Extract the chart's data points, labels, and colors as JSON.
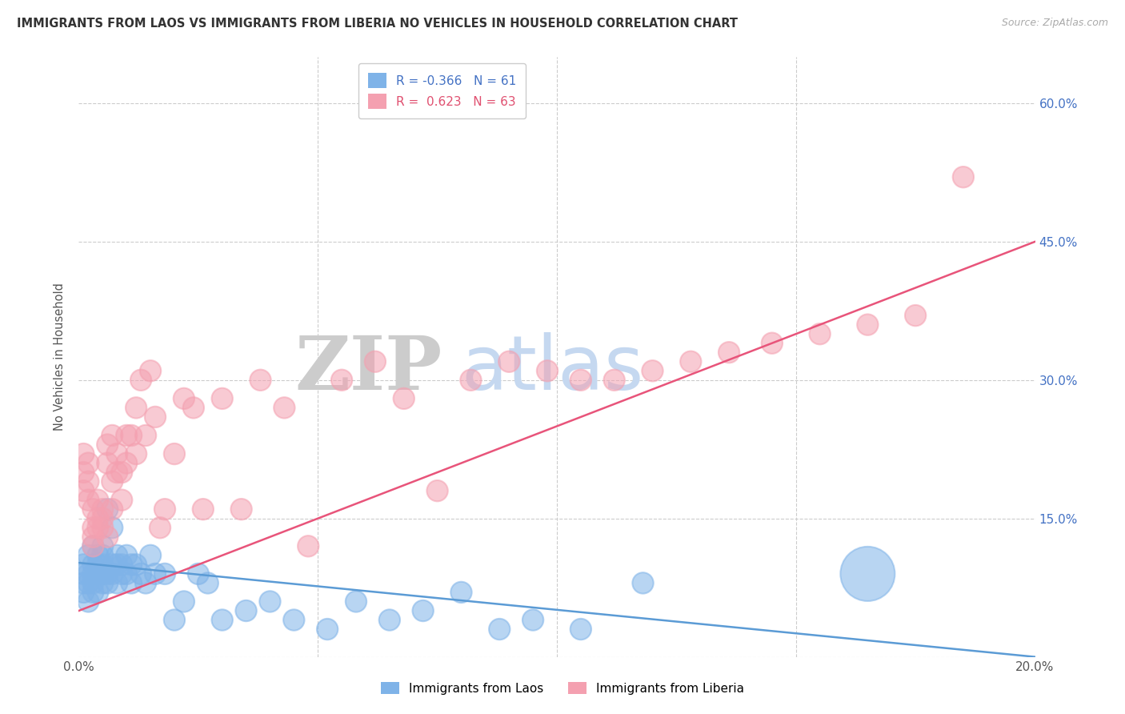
{
  "title": "IMMIGRANTS FROM LAOS VS IMMIGRANTS FROM LIBERIA NO VEHICLES IN HOUSEHOLD CORRELATION CHART",
  "source": "Source: ZipAtlas.com",
  "ylabel": "No Vehicles in Household",
  "xlabel_laos": "Immigrants from Laos",
  "xlabel_liberia": "Immigrants from Liberia",
  "xlim": [
    0.0,
    0.2
  ],
  "ylim": [
    0.0,
    0.65
  ],
  "yticks": [
    0.0,
    0.15,
    0.3,
    0.45,
    0.6
  ],
  "xticks": [
    0.0,
    0.05,
    0.1,
    0.15,
    0.2
  ],
  "ytick_labels_right": [
    "",
    "15.0%",
    "30.0%",
    "45.0%",
    "60.0%"
  ],
  "R_laos": -0.366,
  "N_laos": 61,
  "R_liberia": 0.623,
  "N_liberia": 63,
  "color_laos": "#7fb3e8",
  "color_liberia": "#f4a0b0",
  "trendline_laos_color": "#5b9bd5",
  "trendline_liberia_color": "#e8547a",
  "background_color": "#ffffff",
  "laos_x": [
    0.001,
    0.001,
    0.001,
    0.001,
    0.002,
    0.002,
    0.002,
    0.002,
    0.003,
    0.003,
    0.003,
    0.003,
    0.003,
    0.004,
    0.004,
    0.004,
    0.004,
    0.005,
    0.005,
    0.005,
    0.005,
    0.005,
    0.006,
    0.006,
    0.006,
    0.007,
    0.007,
    0.007,
    0.008,
    0.008,
    0.008,
    0.009,
    0.009,
    0.01,
    0.01,
    0.011,
    0.011,
    0.012,
    0.013,
    0.014,
    0.015,
    0.016,
    0.018,
    0.02,
    0.022,
    0.025,
    0.027,
    0.03,
    0.035,
    0.04,
    0.045,
    0.052,
    0.058,
    0.065,
    0.072,
    0.08,
    0.088,
    0.095,
    0.105,
    0.118,
    0.165
  ],
  "laos_y": [
    0.1,
    0.09,
    0.07,
    0.08,
    0.11,
    0.09,
    0.08,
    0.06,
    0.1,
    0.12,
    0.08,
    0.07,
    0.09,
    0.11,
    0.09,
    0.1,
    0.07,
    0.1,
    0.12,
    0.09,
    0.08,
    0.11,
    0.16,
    0.09,
    0.08,
    0.1,
    0.09,
    0.14,
    0.1,
    0.11,
    0.08,
    0.1,
    0.09,
    0.11,
    0.09,
    0.1,
    0.08,
    0.1,
    0.09,
    0.08,
    0.11,
    0.09,
    0.09,
    0.04,
    0.06,
    0.09,
    0.08,
    0.04,
    0.05,
    0.06,
    0.04,
    0.03,
    0.06,
    0.04,
    0.05,
    0.07,
    0.03,
    0.04,
    0.03,
    0.08,
    0.09
  ],
  "laos_size": [
    30,
    30,
    30,
    30,
    30,
    30,
    30,
    30,
    30,
    30,
    30,
    30,
    30,
    30,
    30,
    30,
    30,
    30,
    30,
    30,
    30,
    30,
    30,
    30,
    30,
    30,
    30,
    30,
    30,
    30,
    30,
    30,
    30,
    30,
    30,
    30,
    30,
    30,
    30,
    30,
    30,
    30,
    30,
    30,
    30,
    30,
    30,
    30,
    30,
    30,
    30,
    30,
    30,
    30,
    30,
    30,
    30,
    30,
    30,
    30,
    200
  ],
  "liberia_x": [
    0.001,
    0.001,
    0.001,
    0.002,
    0.002,
    0.002,
    0.003,
    0.003,
    0.003,
    0.003,
    0.004,
    0.004,
    0.004,
    0.005,
    0.005,
    0.005,
    0.006,
    0.006,
    0.006,
    0.007,
    0.007,
    0.007,
    0.008,
    0.008,
    0.009,
    0.009,
    0.01,
    0.01,
    0.011,
    0.012,
    0.012,
    0.013,
    0.014,
    0.015,
    0.016,
    0.017,
    0.018,
    0.02,
    0.022,
    0.024,
    0.026,
    0.03,
    0.034,
    0.038,
    0.043,
    0.048,
    0.055,
    0.062,
    0.068,
    0.075,
    0.082,
    0.09,
    0.098,
    0.105,
    0.112,
    0.12,
    0.128,
    0.136,
    0.145,
    0.155,
    0.165,
    0.175,
    0.185
  ],
  "liberia_y": [
    0.22,
    0.2,
    0.18,
    0.19,
    0.21,
    0.17,
    0.14,
    0.16,
    0.12,
    0.13,
    0.15,
    0.17,
    0.14,
    0.16,
    0.14,
    0.15,
    0.21,
    0.23,
    0.13,
    0.16,
    0.19,
    0.24,
    0.2,
    0.22,
    0.17,
    0.2,
    0.21,
    0.24,
    0.24,
    0.27,
    0.22,
    0.3,
    0.24,
    0.31,
    0.26,
    0.14,
    0.16,
    0.22,
    0.28,
    0.27,
    0.16,
    0.28,
    0.16,
    0.3,
    0.27,
    0.12,
    0.3,
    0.32,
    0.28,
    0.18,
    0.3,
    0.32,
    0.31,
    0.3,
    0.3,
    0.31,
    0.32,
    0.33,
    0.34,
    0.35,
    0.36,
    0.37,
    0.52
  ],
  "liberia_size": [
    30,
    30,
    30,
    30,
    30,
    30,
    30,
    30,
    30,
    30,
    30,
    30,
    30,
    30,
    30,
    30,
    30,
    30,
    30,
    30,
    30,
    30,
    30,
    30,
    30,
    30,
    30,
    30,
    30,
    30,
    30,
    30,
    30,
    30,
    30,
    30,
    30,
    30,
    30,
    30,
    30,
    30,
    30,
    30,
    30,
    30,
    30,
    30,
    30,
    30,
    30,
    30,
    30,
    30,
    30,
    30,
    30,
    30,
    30,
    30,
    30,
    30,
    30
  ],
  "trendline_laos": [
    0.102,
    0.0
  ],
  "trendline_liberia": [
    0.05,
    0.45
  ]
}
